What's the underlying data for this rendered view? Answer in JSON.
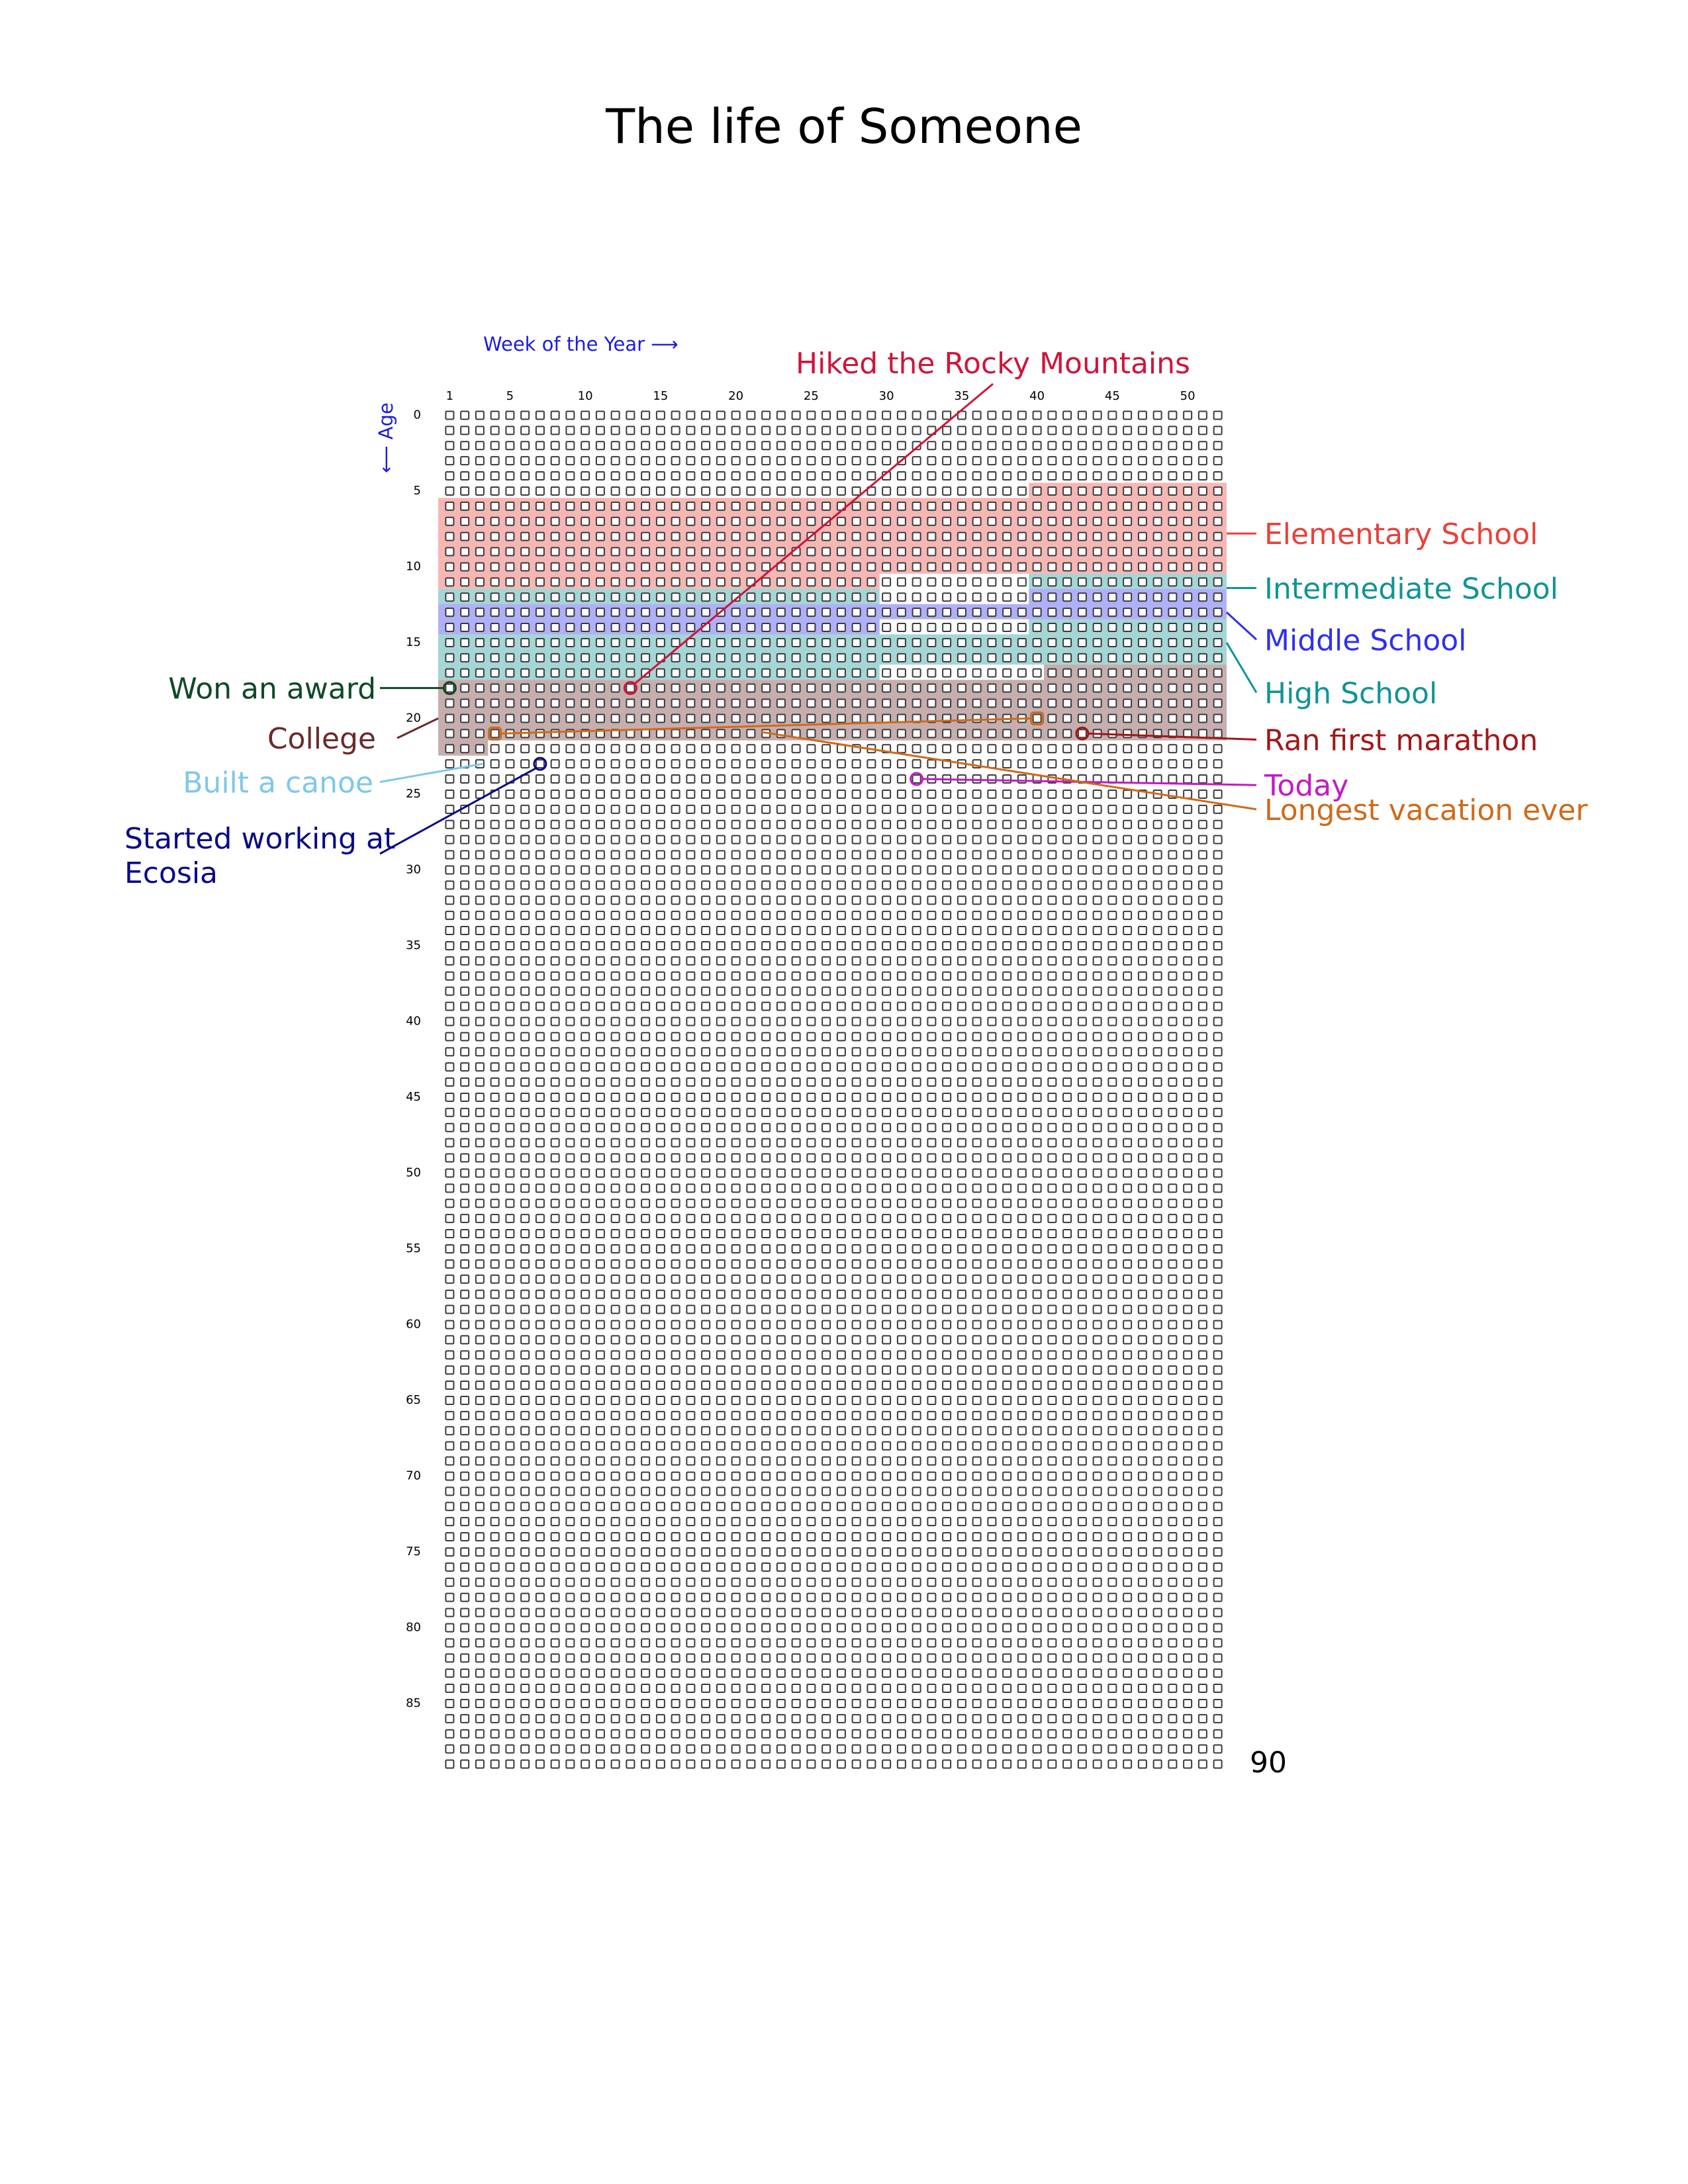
{
  "chart_data": {
    "type": "life-calendar",
    "title": "The life of Someone",
    "x_axis_label": "Week of the Year ⟶",
    "y_axis_label": "⟵ Age",
    "weeks_per_year": 52,
    "years": 90,
    "week_ticks": [
      1,
      5,
      10,
      15,
      20,
      25,
      30,
      35,
      40,
      45,
      50
    ],
    "age_ticks": [
      0,
      5,
      10,
      15,
      20,
      25,
      30,
      35,
      40,
      45,
      50,
      55,
      60,
      65,
      70,
      75,
      80,
      85
    ],
    "end_label": "90",
    "periods": [
      {
        "name": "Elementary School",
        "color": "#e8413a",
        "label_age": 7.8,
        "start": {
          "age": 5,
          "week": 40
        },
        "end": {
          "age": 11,
          "week": 29
        }
      },
      {
        "name": "Intermediate School",
        "color": "#109494",
        "label_age": 11.4,
        "start": {
          "age": 11,
          "week": 40
        },
        "end": {
          "age": 12,
          "week": 29
        }
      },
      {
        "name": "Middle School",
        "color": "#2f2ff0",
        "label_age": 14.8,
        "start": {
          "age": 12,
          "week": 40
        },
        "end": {
          "age": 14,
          "week": 29
        }
      },
      {
        "name": "High School",
        "color": "#109494",
        "label_age": 18.3,
        "start": {
          "age": 14,
          "week": 40
        },
        "end": {
          "age": 17,
          "week": 29
        }
      },
      {
        "name": "College",
        "color": "#6b2a2a",
        "label_age": 21.3,
        "start": {
          "age": 17,
          "week": 41
        },
        "end": {
          "age": 22,
          "week": 3
        }
      }
    ],
    "events": [
      {
        "name": "Hiked the Rocky Mountains",
        "color": "#d0143a",
        "age": 18,
        "week": 13
      },
      {
        "name": "Won an award",
        "color": "#0d4a24",
        "age": 18,
        "week": 1
      },
      {
        "name": "Built a canoe",
        "color": "#7ec8ea",
        "age": 23,
        "week": 3
      },
      {
        "name": "Started working at Ecosia",
        "color": "#0a0a86",
        "age": 23,
        "week": 7
      },
      {
        "name": "Ran first marathon",
        "color": "#a01818",
        "age": 21,
        "week": 43
      },
      {
        "name": "Today",
        "color": "#c41ac4",
        "age": 24,
        "week": 32
      },
      {
        "name": "Longest vacation ever",
        "color": "#d06a1a",
        "start": {
          "age": 21,
          "week": 4
        },
        "end": {
          "age": 20,
          "week": 40
        }
      }
    ]
  }
}
